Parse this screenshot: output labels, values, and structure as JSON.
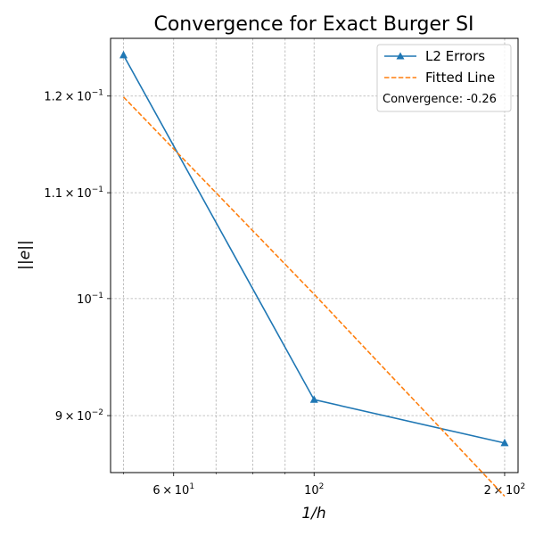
{
  "chart_data": {
    "type": "line",
    "title": "Convergence for Exact Burger SI",
    "xlabel": "1/h",
    "ylabel": "||e||",
    "xscale": "log",
    "yscale": "log",
    "xlim": [
      47.7,
      210
    ],
    "ylim": [
      0.0855,
      0.1264
    ],
    "grid": true,
    "legend_position": "top-right",
    "x_ticks": [
      {
        "value": 60,
        "mantissa": "6",
        "exponent": "1"
      },
      {
        "value": 100,
        "mantissa": "",
        "exponent": "2"
      },
      {
        "value": 200,
        "mantissa": "2",
        "exponent": "2"
      }
    ],
    "x_minor_grid": [
      50,
      70,
      80,
      90
    ],
    "y_ticks": [
      {
        "value": 0.09,
        "mantissa": "9",
        "exponent": "−2"
      },
      {
        "value": 0.1,
        "mantissa": "",
        "exponent": "−1"
      },
      {
        "value": 0.11,
        "mantissa": "1.1",
        "exponent": "−1"
      },
      {
        "value": 0.12,
        "mantissa": "1.2",
        "exponent": "−1"
      }
    ],
    "series": [
      {
        "name": "L2 Errors",
        "color": "#1f77b4",
        "style": "solid",
        "marker": "triangle-up",
        "x": [
          50,
          100,
          200
        ],
        "y": [
          0.1245,
          0.0913,
          0.0878
        ]
      },
      {
        "name": "Fitted Line",
        "color": "#ff7f0e",
        "style": "dashed",
        "marker": "none",
        "x": [
          50,
          100,
          200
        ],
        "y": [
          0.1199,
          0.1004,
          0.0837
        ]
      }
    ],
    "annotation": "Convergence: -0.26"
  }
}
